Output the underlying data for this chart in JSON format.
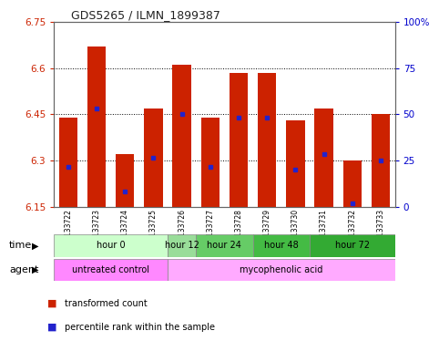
{
  "title": "GDS5265 / ILMN_1899387",
  "samples": [
    "GSM1133722",
    "GSM1133723",
    "GSM1133724",
    "GSM1133725",
    "GSM1133726",
    "GSM1133727",
    "GSM1133728",
    "GSM1133729",
    "GSM1133730",
    "GSM1133731",
    "GSM1133732",
    "GSM1133733"
  ],
  "bar_tops": [
    6.44,
    6.67,
    6.32,
    6.47,
    6.61,
    6.44,
    6.585,
    6.585,
    6.43,
    6.47,
    6.3,
    6.45
  ],
  "blue_positions": [
    6.28,
    6.47,
    6.2,
    6.31,
    6.45,
    6.28,
    6.44,
    6.44,
    6.27,
    6.32,
    6.16,
    6.3
  ],
  "bar_bottom": 6.15,
  "ymin": 6.15,
  "ymax": 6.75,
  "yticks": [
    6.15,
    6.3,
    6.45,
    6.6,
    6.75
  ],
  "ytick_labels": [
    "6.15",
    "6.3",
    "6.45",
    "6.6",
    "6.75"
  ],
  "right_yticks_vals": [
    6.15,
    6.3,
    6.45,
    6.6,
    6.75
  ],
  "right_ytick_labels": [
    "0",
    "25",
    "50",
    "75",
    "100%"
  ],
  "bar_color": "#cc2200",
  "blue_color": "#2222cc",
  "title_color": "#333333",
  "left_tick_color": "#cc2200",
  "right_tick_color": "#0000cc",
  "grid_color": "#000000",
  "time_groups": [
    {
      "label": "hour 0",
      "start": 0,
      "end": 4,
      "color": "#ccffcc"
    },
    {
      "label": "hour 12",
      "start": 4,
      "end": 5,
      "color": "#99dd99"
    },
    {
      "label": "hour 24",
      "start": 5,
      "end": 7,
      "color": "#66cc66"
    },
    {
      "label": "hour 48",
      "start": 7,
      "end": 9,
      "color": "#44bb44"
    },
    {
      "label": "hour 72",
      "start": 9,
      "end": 12,
      "color": "#33aa33"
    }
  ],
  "agent_groups": [
    {
      "label": "untreated control",
      "start": 0,
      "end": 4,
      "color": "#ff88ff"
    },
    {
      "label": "mycophenolic acid",
      "start": 4,
      "end": 12,
      "color": "#ffaaff"
    }
  ],
  "time_row_label": "time",
  "agent_row_label": "agent",
  "legend_red": "transformed count",
  "legend_blue": "percentile rank within the sample",
  "dotted_grid_vals": [
    6.3,
    6.45,
    6.6
  ]
}
